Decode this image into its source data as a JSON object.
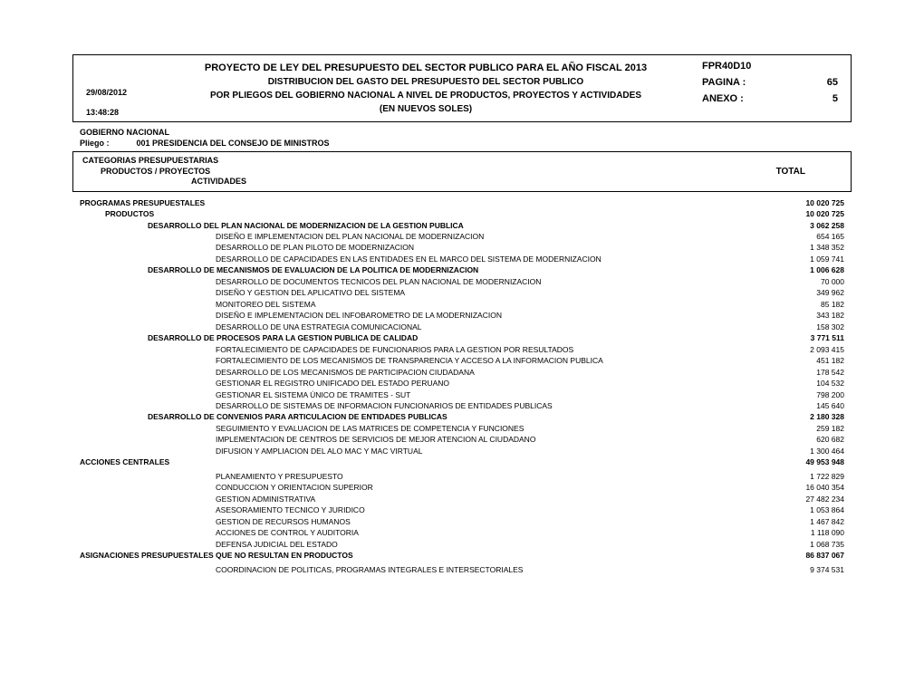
{
  "header": {
    "title_main": "PROYECTO DE LEY DEL PRESUPUESTO DEL SECTOR PUBLICO PARA EL AÑO FISCAL 2013",
    "title_sub1": "DISTRIBUCION DEL GASTO DEL PRESUPUESTO DEL SECTOR PUBLICO",
    "title_sub2": "POR PLIEGOS DEL GOBIERNO NACIONAL A NIVEL DE PRODUCTOS, PROYECTOS Y ACTIVIDADES",
    "title_sub3": "(EN NUEVOS SOLES)",
    "date": "29/08/2012",
    "time": "13:48:28",
    "code": "FPR40D10",
    "pagina_label": "PAGINA :",
    "pagina_val": "65",
    "anexo_label": "ANEXO  :",
    "anexo_val": "5"
  },
  "gov": "GOBIERNO NACIONAL",
  "pliego_label": "Pliego :",
  "pliego_value": "001  PRESIDENCIA DEL CONSEJO DE MINISTROS",
  "cat": {
    "l1": "CATEGORIAS PRESUPUESTARIAS",
    "l2": "PRODUCTOS / PROYECTOS",
    "l3": "ACTIVIDADES",
    "total": "TOTAL"
  },
  "rows": [
    {
      "indent": 0,
      "bold": true,
      "label": "PROGRAMAS PRESUPUESTALES",
      "value": "10 020 725"
    },
    {
      "indent": 1,
      "bold": true,
      "label": "PRODUCTOS",
      "value": "10 020 725"
    },
    {
      "indent": 2,
      "bold": true,
      "label": "DESARROLLO DEL PLAN NACIONAL DE MODERNIZACION DE LA GESTION PUBLICA",
      "value": "3 062 258"
    },
    {
      "indent": 3,
      "bold": false,
      "label": "DISEÑO E IMPLEMENTACION DEL PLAN NACIONAL DE MODERNIZACION",
      "value": " 654 165"
    },
    {
      "indent": 3,
      "bold": false,
      "label": "DESARROLLO DE PLAN PILOTO DE MODERNIZACION",
      "value": "1 348 352"
    },
    {
      "indent": 3,
      "bold": false,
      "label": "DESARROLLO DE CAPACIDADES EN LAS ENTIDADES EN EL MARCO DEL SISTEMA DE MODERNIZACION",
      "value": "1 059 741"
    },
    {
      "indent": 2,
      "bold": true,
      "label": "DESARROLLO DE MECANISMOS DE EVALUACION DE LA POLITICA DE MODERNIZACION",
      "value": "1 006 628"
    },
    {
      "indent": 3,
      "bold": false,
      "label": "DESARROLLO DE DOCUMENTOS TECNICOS DEL PLAN NACIONAL DE MODERNIZACION",
      "value": " 70 000"
    },
    {
      "indent": 3,
      "bold": false,
      "label": "DISEÑO Y GESTION DEL APLICATIVO DEL SISTEMA",
      "value": " 349 962"
    },
    {
      "indent": 3,
      "bold": false,
      "label": "MONITOREO DEL SISTEMA",
      "value": " 85 182"
    },
    {
      "indent": 3,
      "bold": false,
      "label": "DISEÑO E IMPLEMENTACION DEL INFOBAROMETRO DE LA MODERNIZACION",
      "value": " 343 182"
    },
    {
      "indent": 3,
      "bold": false,
      "label": "DESARROLLO DE UNA ESTRATEGIA COMUNICACIONAL",
      "value": " 158 302"
    },
    {
      "indent": 2,
      "bold": true,
      "label": "DESARROLLO DE PROCESOS PARA LA GESTION PUBLICA DE CALIDAD",
      "value": "3 771 511"
    },
    {
      "indent": 3,
      "bold": false,
      "label": "FORTALECIMIENTO DE CAPACIDADES DE FUNCIONARIOS PARA LA GESTION POR RESULTADOS",
      "value": "2 093 415"
    },
    {
      "indent": 3,
      "bold": false,
      "label": "FORTALECIMIENTO DE LOS MECANISMOS DE TRANSPARENCIA Y ACCESO A LA INFORMACION PUBLICA",
      "value": " 451 182"
    },
    {
      "indent": 3,
      "bold": false,
      "label": "DESARROLLO DE LOS MECANISMOS DE PARTICIPACION CIUDADANA",
      "value": " 178 542"
    },
    {
      "indent": 3,
      "bold": false,
      "label": "GESTIONAR EL REGISTRO UNIFICADO DEL ESTADO PERUANO",
      "value": " 104 532"
    },
    {
      "indent": 3,
      "bold": false,
      "label": "GESTIONAR EL SISTEMA ÚNICO DE TRAMITES - SUT",
      "value": " 798 200"
    },
    {
      "indent": 3,
      "bold": false,
      "label": "DESARROLLO DE SISTEMAS DE INFORMACION FUNCIONARIOS DE ENTIDADES PUBLICAS",
      "value": " 145 640"
    },
    {
      "indent": 2,
      "bold": true,
      "label": "DESARROLLO DE CONVENIOS PARA ARTICULACION DE ENTIDADES PUBLICAS",
      "value": "2 180 328"
    },
    {
      "indent": 3,
      "bold": false,
      "label": "SEGUIMIENTO Y EVALUACION DE LAS MATRICES DE COMPETENCIA Y FUNCIONES",
      "value": " 259 182"
    },
    {
      "indent": 3,
      "bold": false,
      "label": "IMPLEMENTACION DE CENTROS DE SERVICIOS DE MEJOR ATENCION AL CIUDADANO",
      "value": " 620 682"
    },
    {
      "indent": 3,
      "bold": false,
      "label": "DIFUSION Y AMPLIACION DEL ALO MAC Y MAC VIRTUAL",
      "value": "1 300 464"
    },
    {
      "indent": 0,
      "bold": true,
      "label": "ACCIONES CENTRALES",
      "value": "49 953 948"
    },
    {
      "spacer": true
    },
    {
      "indent": 3,
      "bold": false,
      "label": "PLANEAMIENTO Y PRESUPUESTO",
      "value": "1 722 829"
    },
    {
      "indent": 3,
      "bold": false,
      "label": "CONDUCCION Y ORIENTACION SUPERIOR",
      "value": "16 040 354"
    },
    {
      "indent": 3,
      "bold": false,
      "label": "GESTION ADMINISTRATIVA",
      "value": "27 482 234"
    },
    {
      "indent": 3,
      "bold": false,
      "label": "ASESORAMIENTO TECNICO Y JURIDICO",
      "value": "1 053 864"
    },
    {
      "indent": 3,
      "bold": false,
      "label": "GESTION DE RECURSOS HUMANOS",
      "value": "1 467 842"
    },
    {
      "indent": 3,
      "bold": false,
      "label": "ACCIONES DE CONTROL Y AUDITORIA",
      "value": "1 118 090"
    },
    {
      "indent": 3,
      "bold": false,
      "label": "DEFENSA JUDICIAL DEL ESTADO",
      "value": "1 068 735"
    },
    {
      "indent": 0,
      "bold": true,
      "label": "ASIGNACIONES PRESUPUESTALES QUE NO RESULTAN EN PRODUCTOS",
      "value": "86 837 067"
    },
    {
      "spacer": true
    },
    {
      "indent": 3,
      "bold": false,
      "label": "COORDINACION DE POLITICAS, PROGRAMAS INTEGRALES E INTERSECTORIALES",
      "value": "9 374 531"
    }
  ]
}
